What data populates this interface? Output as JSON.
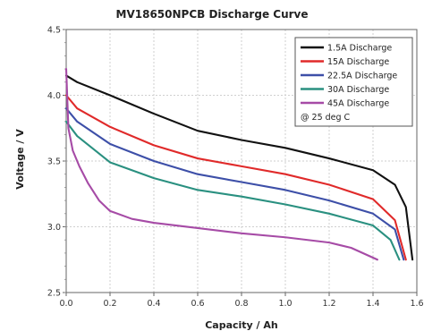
{
  "chart_data": {
    "type": "line",
    "title": "MV18650NPCB Discharge Curve",
    "xlabel": "Capacity / Ah",
    "ylabel": "Voltage / V",
    "xlim": [
      0.0,
      1.6
    ],
    "ylim": [
      2.5,
      4.5
    ],
    "x_ticks": [
      "0.0",
      "0.2",
      "0.4",
      "0.6",
      "0.8",
      "1.0",
      "1.2",
      "1.4",
      "1.6"
    ],
    "y_ticks": [
      "2.5",
      "3.0",
      "3.5",
      "4.0",
      "4.5"
    ],
    "grid": true,
    "legend_position": "top-right",
    "legend_note": "@ 25 deg C",
    "series": [
      {
        "name": "1.5A Discharge",
        "color": "#111111",
        "points": [
          [
            0.0,
            4.15
          ],
          [
            0.05,
            4.1
          ],
          [
            0.2,
            4.0
          ],
          [
            0.4,
            3.86
          ],
          [
            0.6,
            3.73
          ],
          [
            0.8,
            3.66
          ],
          [
            1.0,
            3.6
          ],
          [
            1.2,
            3.52
          ],
          [
            1.4,
            3.43
          ],
          [
            1.5,
            3.32
          ],
          [
            1.55,
            3.15
          ],
          [
            1.58,
            2.75
          ]
        ]
      },
      {
        "name": "15A Discharge",
        "color": "#e02a2a",
        "points": [
          [
            0.0,
            4.0
          ],
          [
            0.05,
            3.9
          ],
          [
            0.2,
            3.76
          ],
          [
            0.4,
            3.62
          ],
          [
            0.6,
            3.52
          ],
          [
            0.8,
            3.46
          ],
          [
            1.0,
            3.4
          ],
          [
            1.2,
            3.32
          ],
          [
            1.4,
            3.21
          ],
          [
            1.5,
            3.05
          ],
          [
            1.55,
            2.75
          ]
        ]
      },
      {
        "name": "22.5A Discharge",
        "color": "#3d4fa8",
        "points": [
          [
            0.0,
            3.9
          ],
          [
            0.05,
            3.8
          ],
          [
            0.2,
            3.63
          ],
          [
            0.4,
            3.5
          ],
          [
            0.6,
            3.4
          ],
          [
            0.8,
            3.34
          ],
          [
            1.0,
            3.28
          ],
          [
            1.2,
            3.2
          ],
          [
            1.4,
            3.1
          ],
          [
            1.5,
            2.98
          ],
          [
            1.54,
            2.75
          ]
        ]
      },
      {
        "name": "30A Discharge",
        "color": "#2a9080",
        "points": [
          [
            0.0,
            3.8
          ],
          [
            0.05,
            3.69
          ],
          [
            0.2,
            3.49
          ],
          [
            0.4,
            3.37
          ],
          [
            0.6,
            3.28
          ],
          [
            0.8,
            3.23
          ],
          [
            1.0,
            3.17
          ],
          [
            1.2,
            3.1
          ],
          [
            1.4,
            3.01
          ],
          [
            1.48,
            2.9
          ],
          [
            1.52,
            2.75
          ]
        ]
      },
      {
        "name": "45A Discharge",
        "color": "#a64ba6",
        "points": [
          [
            0.0,
            4.2
          ],
          [
            0.01,
            3.75
          ],
          [
            0.03,
            3.58
          ],
          [
            0.06,
            3.46
          ],
          [
            0.1,
            3.33
          ],
          [
            0.15,
            3.2
          ],
          [
            0.2,
            3.12
          ],
          [
            0.3,
            3.06
          ],
          [
            0.4,
            3.03
          ],
          [
            0.6,
            2.99
          ],
          [
            0.8,
            2.95
          ],
          [
            1.0,
            2.92
          ],
          [
            1.2,
            2.88
          ],
          [
            1.3,
            2.84
          ],
          [
            1.42,
            2.75
          ]
        ]
      }
    ]
  }
}
